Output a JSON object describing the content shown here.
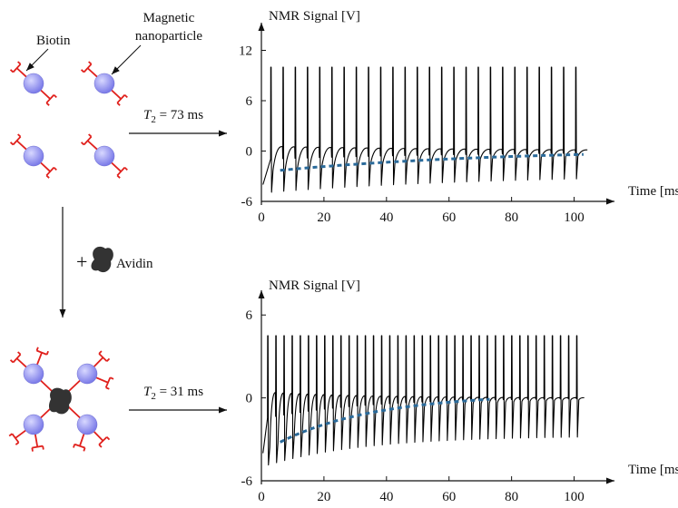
{
  "diagram": {
    "labels": {
      "biotin": "Biotin",
      "magnetic_line1": "Magnetic",
      "magnetic_line2": "nanoparticle",
      "plus": "+",
      "avidin": "Avidin"
    },
    "arrows": {
      "top_t2_symbol": "T",
      "top_t2_sub": "2",
      "top_t2_value": " = 73 ms",
      "bottom_t2_symbol": "T",
      "bottom_t2_sub": "2",
      "bottom_t2_value": " = 31 ms"
    },
    "colors": {
      "particle": "#8f8ff0",
      "particle_highlight": "#d8d8ff",
      "biotin": "#e0201c",
      "avidin": "#333333",
      "decay_fit": "#2a6a9a",
      "signal": "#000000"
    }
  },
  "chart_data": [
    {
      "type": "line",
      "ylabel": "NMR Signal [V]",
      "xlabel": "Time [ms]",
      "xlim": [
        0,
        110
      ],
      "ylim": [
        -6,
        14
      ],
      "x_ticks": [
        0,
        20,
        40,
        60,
        80,
        100
      ],
      "y_ticks": [
        -6,
        0,
        6,
        12
      ],
      "T2_ms": 73,
      "spin_echo": {
        "echo_count": 26,
        "first_echo_ms": 3,
        "spacing_ms": 3.9,
        "pulse_peak": 10,
        "pulse_trough": -5
      },
      "decay_envelope": {
        "start_ms": 6,
        "end_ms": 103,
        "start_value": -2.3,
        "end_value": -0.4
      }
    },
    {
      "type": "line",
      "ylabel": "NMR Signal [V]",
      "xlabel": "Time [ms]",
      "xlim": [
        0,
        110
      ],
      "ylim": [
        -6,
        7
      ],
      "x_ticks": [
        0,
        20,
        40,
        60,
        80,
        100
      ],
      "y_ticks": [
        -6,
        0,
        6
      ],
      "T2_ms": 31,
      "spin_echo": {
        "echo_count": 39,
        "first_echo_ms": 2,
        "spacing_ms": 2.6,
        "pulse_peak": 4.5,
        "pulse_trough": -5
      },
      "decay_envelope": {
        "start_ms": 6,
        "end_ms": 73,
        "start_value": -3.2,
        "end_value": -0.1
      }
    }
  ]
}
